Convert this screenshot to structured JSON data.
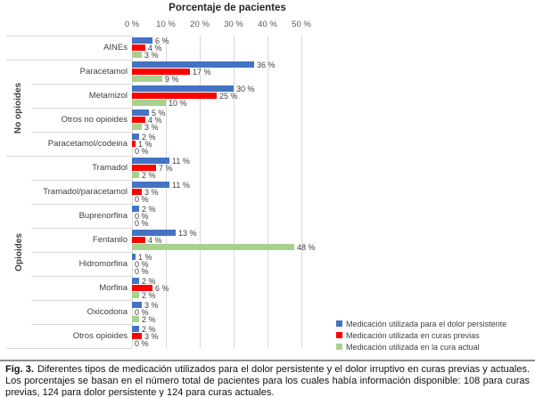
{
  "chart_data": {
    "type": "bar",
    "orientation": "horizontal",
    "title": "Porcentaje de pacientes",
    "xlabel": "Porcentaje de pacientes",
    "ylabel": "",
    "unit": "%",
    "x_ticks": [
      "0 %",
      "10 %",
      "20 %",
      "30 %",
      "40 %",
      "50 %"
    ],
    "x_tick_values": [
      0,
      10,
      20,
      30,
      40,
      50
    ],
    "xlim": [
      0,
      52
    ],
    "grid": true,
    "legend_position": "bottom-right",
    "groups": [
      {
        "label": "",
        "categories": [
          "AINEs"
        ]
      },
      {
        "label": "No opioides",
        "categories": [
          "Paracetamol",
          "Metamizol",
          "Otros no opioides",
          "Paracetamol/codeina"
        ]
      },
      {
        "label": "Opioides",
        "categories": [
          "Tramadol",
          "Tramadol/paracetamol",
          "Buprenorfina",
          "Fentanilo",
          "Hidromorfina",
          "Morfina",
          "Oxicodona",
          "Otros opioides"
        ]
      }
    ],
    "categories": [
      "AINEs",
      "Paracetamol",
      "Metamizol",
      "Otros no opioides",
      "Paracetamol/codeina",
      "Tramadol",
      "Tramadol/paracetamol",
      "Buprenorfina",
      "Fentanilo",
      "Hidromorfina",
      "Morfina",
      "Oxicodona",
      "Otros opioides"
    ],
    "series": [
      {
        "name": "Medicación utilizada para el dolor persistente",
        "color": "#4472c4",
        "values": [
          6,
          36,
          30,
          5,
          2,
          11,
          11,
          2,
          13,
          1,
          2,
          3,
          2
        ]
      },
      {
        "name": "Medicación utilizada en curas previas",
        "color": "#ff0000",
        "values": [
          4,
          17,
          25,
          4,
          1,
          7,
          3,
          0,
          4,
          0,
          6,
          0,
          3
        ]
      },
      {
        "name": "Medicación utilizada en la cura actual",
        "color": "#a9d18e",
        "values": [
          3,
          9,
          10,
          3,
          0,
          2,
          0,
          0,
          48,
          0,
          2,
          2,
          0
        ]
      }
    ]
  },
  "caption": {
    "label": "Fig. 3.",
    "text": "Diferentes tipos de medicación utilizados para el dolor persistente y el dolor irruptivo en curas previas y actuales. Los porcentajes se basan en el número total de pacientes para los cuales había información disponible: 108 para curas previas, 124 para dolor persistente y 124 para curas actuales."
  }
}
